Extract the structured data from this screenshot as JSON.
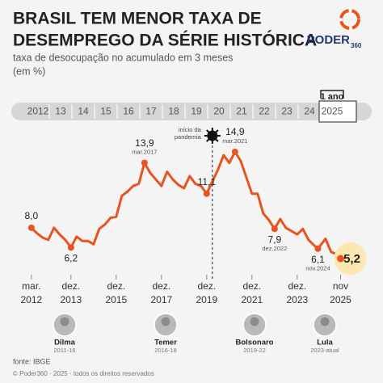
{
  "chart_data": {
    "type": "line",
    "title_lines": [
      "BRASIL TEM MENOR TAXA DE",
      "DESEMPREGO DA SÉRIE HISTÓRICA"
    ],
    "subtitle_lines": [
      "taxa de desocupação no acumulado em 3 meses",
      "(em %)"
    ],
    "brand": "PODER",
    "brand_sub": "360",
    "year_band": [
      "2012",
      "13",
      "14",
      "15",
      "16",
      "17",
      "18",
      "19",
      "20",
      "21",
      "22",
      "23",
      "24",
      "2025"
    ],
    "year_band_note": "1 ano",
    "event": {
      "x": "2020-03",
      "label_lines": [
        "início da",
        "pandemia"
      ]
    },
    "color": "#e8541f",
    "x": [
      "2012-03",
      "2012-06",
      "2012-09",
      "2012-12",
      "2013-03",
      "2013-06",
      "2013-09",
      "2013-12",
      "2014-03",
      "2014-06",
      "2014-09",
      "2014-12",
      "2015-03",
      "2015-06",
      "2015-09",
      "2015-12",
      "2016-03",
      "2016-06",
      "2016-09",
      "2016-12",
      "2017-03",
      "2017-06",
      "2017-09",
      "2017-12",
      "2018-03",
      "2018-06",
      "2018-09",
      "2018-12",
      "2019-03",
      "2019-06",
      "2019-09",
      "2019-12",
      "2020-03",
      "2020-06",
      "2020-09",
      "2020-12",
      "2021-03",
      "2021-06",
      "2021-09",
      "2021-12",
      "2022-03",
      "2022-06",
      "2022-09",
      "2022-12",
      "2023-03",
      "2023-06",
      "2023-09",
      "2023-12",
      "2024-03",
      "2024-06",
      "2024-09",
      "2024-11",
      "2025-03",
      "2025-06",
      "2025-09",
      "2025-11"
    ],
    "values": [
      8.0,
      7.5,
      7.1,
      6.9,
      8.0,
      7.4,
      6.9,
      6.2,
      7.2,
      6.8,
      6.8,
      6.5,
      7.9,
      8.3,
      8.9,
      9.0,
      10.9,
      11.3,
      11.8,
      12.0,
      13.9,
      13.0,
      12.4,
      11.8,
      13.1,
      12.4,
      11.9,
      11.6,
      12.7,
      12.0,
      11.8,
      11.1,
      12.2,
      13.3,
      14.6,
      13.9,
      14.9,
      14.1,
      12.6,
      11.1,
      11.1,
      9.3,
      8.7,
      7.9,
      8.8,
      8.0,
      7.7,
      7.4,
      7.9,
      6.9,
      6.4,
      6.1,
      7.0,
      5.8,
      5.6,
      5.2
    ],
    "value_labels": [
      "8,0",
      null,
      null,
      null,
      null,
      null,
      null,
      "6,2",
      null,
      null,
      null,
      null,
      null,
      null,
      null,
      null,
      null,
      null,
      null,
      null,
      "13,9",
      null,
      null,
      null,
      null,
      null,
      null,
      null,
      null,
      null,
      null,
      "11,1",
      null,
      null,
      null,
      null,
      "14,9",
      null,
      null,
      null,
      null,
      null,
      null,
      "7,9",
      null,
      null,
      null,
      null,
      null,
      null,
      null,
      "6,1",
      null,
      null,
      null,
      "5,2"
    ],
    "point_dates": [
      null,
      null,
      null,
      null,
      null,
      null,
      null,
      null,
      null,
      null,
      null,
      null,
      null,
      null,
      null,
      null,
      null,
      null,
      null,
      null,
      "mar.2017",
      null,
      null,
      null,
      null,
      null,
      null,
      null,
      null,
      null,
      null,
      null,
      null,
      null,
      null,
      null,
      "mar.2021",
      null,
      null,
      null,
      null,
      null,
      null,
      "dez.2022",
      null,
      null,
      null,
      null,
      null,
      null,
      null,
      "nov.2024",
      null,
      null,
      null,
      null
    ],
    "xticks": [
      {
        "value": "2012-03",
        "label": "mar.",
        "year_label": "2012"
      },
      {
        "value": "2013-12",
        "label": "dez.",
        "year_label": "2013"
      },
      {
        "value": "2015-12",
        "label": "dez.",
        "year_label": "2015"
      },
      {
        "value": "2017-12",
        "label": "dez.",
        "year_label": "2017"
      },
      {
        "value": "2019-12",
        "label": "dez.",
        "year_label": "2019"
      },
      {
        "value": "2021-12",
        "label": "dez.",
        "year_label": "2021"
      },
      {
        "value": "2023-12",
        "label": "dez.",
        "year_label": "2023"
      },
      {
        "value": "2025-11",
        "label": "nov",
        "year_label": "2025"
      }
    ],
    "presidents": [
      {
        "name": "Dilma",
        "term": "2011-16"
      },
      {
        "name": "Temer",
        "term": "2016-18"
      },
      {
        "name": "Bolsonaro",
        "term": "2019-22"
      },
      {
        "name": "Lula",
        "term": "2023-atual"
      }
    ],
    "source": "fonte: IBGE",
    "copyright": "© Poder360 · 2025 · todos os direitos reservados"
  }
}
